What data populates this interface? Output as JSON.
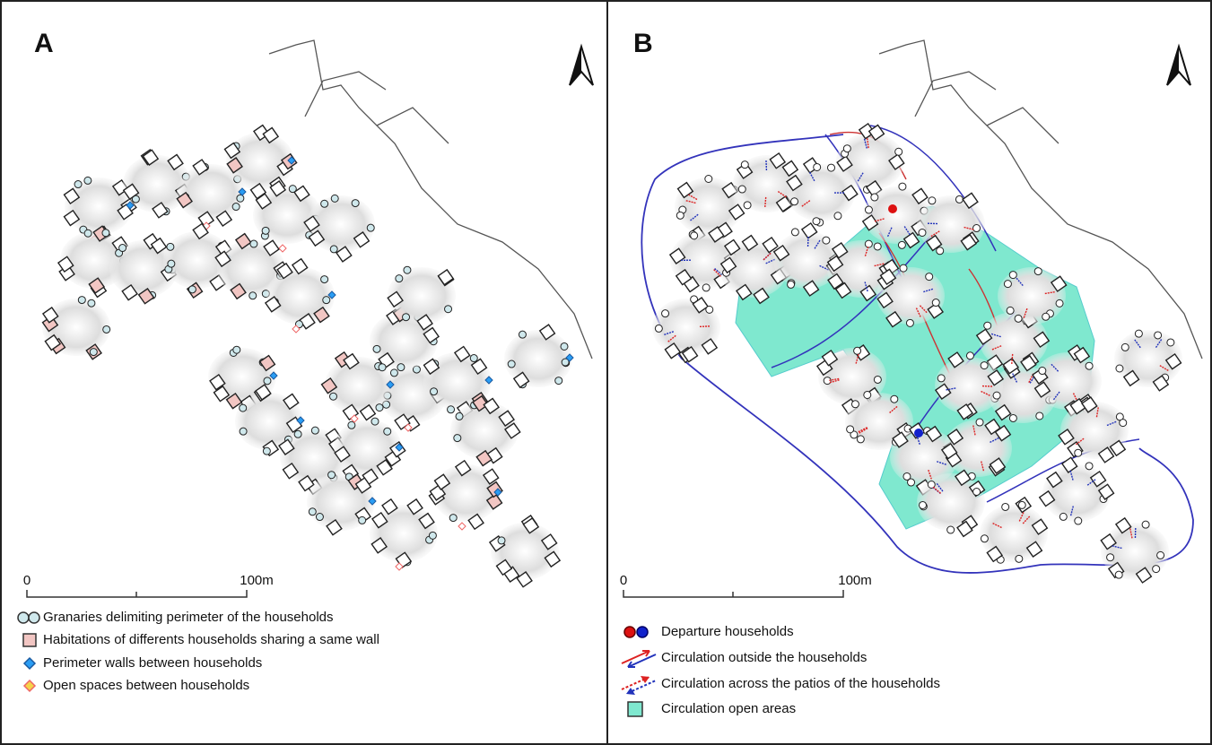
{
  "panels": [
    {
      "label": "A",
      "scale": {
        "start": "0",
        "end": "100m"
      },
      "legend": [
        "Granaries delimiting perimeter of the households",
        "Habitations of differents households sharing a same wall",
        "Perimeter walls between households",
        "Open spaces between households"
      ]
    },
    {
      "label": "B",
      "scale": {
        "start": "0",
        "end": "100m"
      },
      "legend": [
        "Departure households",
        "Circulation outside the households",
        "Circulation across the patios of the households",
        "Circulation open areas"
      ]
    }
  ]
}
